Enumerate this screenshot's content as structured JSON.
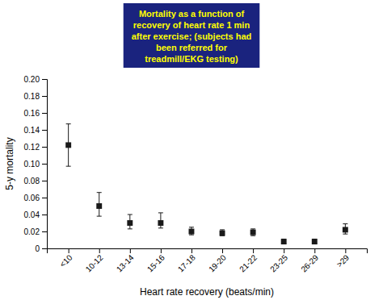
{
  "chart_data": {
    "type": "scatter",
    "title": [
      "Mortality as a function of",
      "recovery of heart rate 1 min",
      "after exercise; (subjects had",
      "been referred for",
      "treadmill/EKG testing)"
    ],
    "xlabel": "Heart rate recovery (beats/min)",
    "ylabel": "5-y mortality",
    "categories": [
      "<10",
      "10-12",
      "13-14",
      "15-16",
      "17-18",
      "19-20",
      "21-22",
      "23-25",
      "26-29",
      ">29"
    ],
    "values": [
      0.122,
      0.05,
      0.03,
      0.03,
      0.02,
      0.018,
      0.019,
      0.008,
      0.008,
      0.022
    ],
    "yerr_lower": [
      0.025,
      0.012,
      0.007,
      0.006,
      0.004,
      0.003,
      0.004,
      0.002,
      0.002,
      0.005
    ],
    "yerr_upper": [
      0.025,
      0.016,
      0.01,
      0.012,
      0.005,
      0.004,
      0.004,
      0.003,
      0.003,
      0.007
    ],
    "ylim": [
      0,
      0.2
    ],
    "yticks": [
      0,
      0.02,
      0.04,
      0.06,
      0.08,
      {
        "value": 0.1,
        "label": "0.10"
      },
      0.12,
      0.14,
      0.16,
      0.18,
      {
        "value": 0.2,
        "label": "0.20"
      }
    ],
    "color": "#1a1a1a",
    "marker": "square",
    "grid": false
  }
}
